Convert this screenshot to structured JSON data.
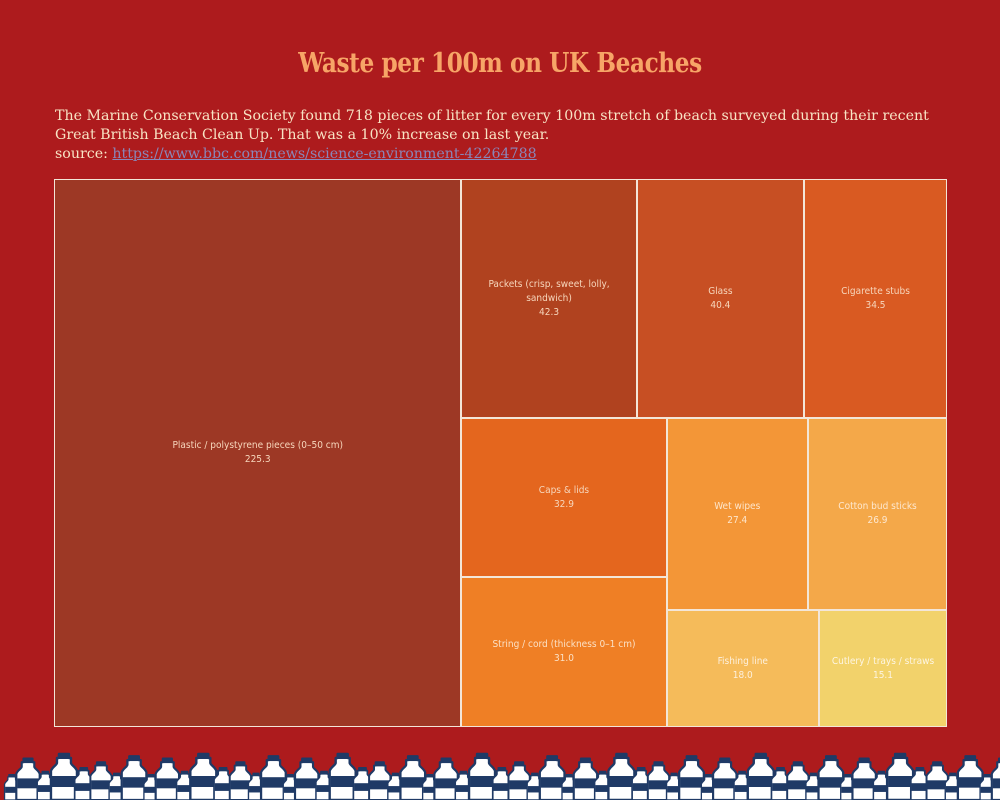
{
  "title": "Waste per 100m on UK Beaches",
  "description": {
    "line1": "The Marine Conservation Society found 718 pieces of litter for every 100m stretch of beach surveyed during their recent",
    "line2": "Great British Beach Clean Up. That was a 10% increase on last year.",
    "source_label": "source: ",
    "source_url": "https://www.bbc.com/news/science-environment-42264788"
  },
  "colors": {
    "background": "#ad1b1d",
    "title": "#f7a567",
    "tile_border": "#f3e6d8",
    "bottle": "#1f3a66"
  },
  "chart_data": {
    "type": "treemap",
    "title": "Waste per 100m on UK Beaches",
    "items": [
      {
        "label": "Plastic / polystyrene pieces (0–50 cm)",
        "value": 225.3,
        "color": "#9d3825",
        "text_color": "#f7d7bd"
      },
      {
        "label": "Packets (crisp, sweet, lolly, sandwich)",
        "value": 42.3,
        "color": "#b0421f",
        "text_color": "#f7d7bd"
      },
      {
        "label": "Glass",
        "value": 40.4,
        "color": "#c74f23",
        "text_color": "#f7d7bd"
      },
      {
        "label": "Cigarette stubs",
        "value": 34.5,
        "color": "#d95a22",
        "text_color": "#f7d7bd"
      },
      {
        "label": "Caps & lids",
        "value": 32.9,
        "color": "#e4661e",
        "text_color": "#f7d7bd"
      },
      {
        "label": "String / cord (thickness 0–1 cm)",
        "value": 31.0,
        "color": "#ef7f25",
        "text_color": "#fbe1c6"
      },
      {
        "label": "Wet wipes",
        "value": 27.4,
        "color": "#f39637",
        "text_color": "#fde6cc"
      },
      {
        "label": "Cotton bud sticks",
        "value": 26.9,
        "color": "#f4a849",
        "text_color": "#fde8d0"
      },
      {
        "label": "Fishing line",
        "value": 18.0,
        "color": "#f5bb5a",
        "text_color": "#fdf0dc"
      },
      {
        "label": "Cutlery / trays / straws",
        "value": 15.1,
        "color": "#f2d26b",
        "text_color": "#fdf5e2"
      }
    ]
  }
}
